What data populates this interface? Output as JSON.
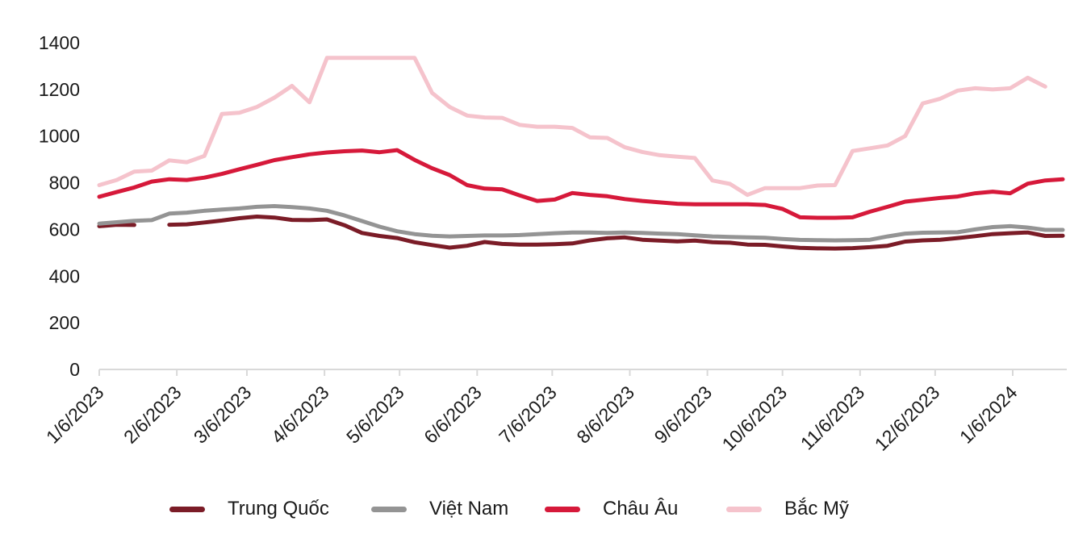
{
  "chart_data": {
    "type": "line",
    "title": "",
    "xlabel": "",
    "ylabel": "",
    "x_labels": [
      "1/6/2023",
      "2/6/2023",
      "3/6/2023",
      "4/6/2023",
      "5/6/2023",
      "6/6/2023",
      "7/6/2023",
      "8/6/2023",
      "9/6/2023",
      "10/6/2023",
      "11/6/2023",
      "12/6/2023",
      "1/6/2024"
    ],
    "x_tick_days": [
      0,
      31,
      59,
      90,
      120,
      151,
      181,
      212,
      243,
      273,
      304,
      334,
      365
    ],
    "x_frequency": "weekly",
    "y_ticks": [
      0,
      200,
      400,
      600,
      800,
      1000,
      1200,
      1400
    ],
    "ylim": [
      0,
      1400
    ],
    "grid": false,
    "legend_position": "bottom",
    "axis_color": "#d9d9d9",
    "text_color": "#1a1a1a",
    "series": [
      {
        "id": "trung-quoc",
        "name": "Trung Quốc",
        "color": "#7b1c27",
        "segments": [
          [
            0,
            2
          ],
          [
            4,
            55
          ]
        ],
        "values": [
          614,
          620,
          619,
          null,
          620,
          622,
          630,
          638,
          648,
          655,
          651,
          641,
          640,
          643,
          618,
          585,
          572,
          563,
          545,
          533,
          522,
          530,
          546,
          538,
          535,
          535,
          537,
          540,
          553,
          562,
          566,
          556,
          552,
          549,
          552,
          545,
          543,
          535,
          534,
          527,
          521,
          519,
          518,
          520,
          524,
          530,
          548,
          553,
          556,
          563,
          571,
          580,
          584,
          587,
          572,
          573
        ]
      },
      {
        "id": "viet-nam",
        "name": "Việt Nam",
        "color": "#949494",
        "values": [
          625,
          631,
          637,
          640,
          668,
          672,
          680,
          685,
          690,
          697,
          700,
          696,
          690,
          680,
          660,
          636,
          612,
          592,
          580,
          573,
          570,
          572,
          574,
          574,
          576,
          580,
          584,
          587,
          587,
          585,
          587,
          585,
          582,
          580,
          575,
          570,
          568,
          566,
          564,
          559,
          555,
          554,
          553,
          554,
          556,
          570,
          582,
          586,
          587,
          588,
          600,
          610,
          614,
          608,
          598,
          598
        ]
      },
      {
        "id": "chau-au",
        "name": "Châu Âu",
        "color": "#d6193a",
        "values": [
          740,
          760,
          780,
          805,
          815,
          812,
          822,
          838,
          858,
          877,
          897,
          910,
          922,
          930,
          935,
          938,
          931,
          940,
          898,
          862,
          833,
          790,
          775,
          772,
          746,
          722,
          728,
          756,
          748,
          742,
          730,
          722,
          716,
          710,
          708,
          708,
          708,
          708,
          705,
          688,
          652,
          650,
          650,
          652,
          676,
          697,
          719,
          727,
          735,
          741,
          755,
          762,
          755,
          796,
          810,
          815
        ]
      },
      {
        "id": "bac-my",
        "name": "Bắc Mỹ",
        "color": "#f5c3cc",
        "values": [
          790,
          812,
          848,
          852,
          896,
          888,
          915,
          1095,
          1100,
          1125,
          1165,
          1215,
          1145,
          1335,
          1335,
          1335,
          1335,
          1335,
          1335,
          1185,
          1125,
          1088,
          1080,
          1078,
          1048,
          1040,
          1040,
          1035,
          995,
          992,
          952,
          932,
          918,
          912,
          906,
          810,
          795,
          748,
          777,
          777,
          777,
          788,
          790,
          936,
          948,
          960,
          1000,
          1140,
          1160,
          1195,
          1205,
          1200,
          1205,
          1250,
          1212,
          null
        ]
      }
    ]
  },
  "legend": {
    "items": [
      {
        "label": "Trung Quốc"
      },
      {
        "label": "Việt Nam"
      },
      {
        "label": "Châu Âu"
      },
      {
        "label": "Bắc Mỹ"
      }
    ]
  }
}
